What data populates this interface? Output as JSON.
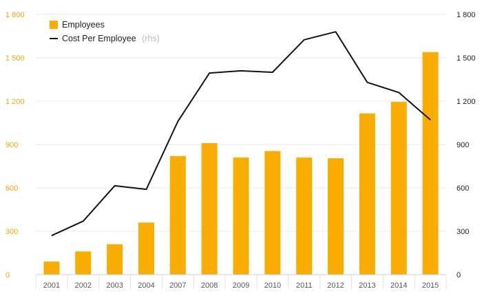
{
  "chart_data": {
    "type": "bar",
    "categories": [
      "2001",
      "2002",
      "2003",
      "2004",
      "2007",
      "2008",
      "2009",
      "2010",
      "2011",
      "2012",
      "2013",
      "2014",
      "2015"
    ],
    "series": [
      {
        "name": "Employees",
        "type": "bar",
        "axis": "left",
        "color": "#f8ad00",
        "values": [
          90,
          160,
          210,
          360,
          820,
          910,
          810,
          855,
          810,
          805,
          1115,
          1195,
          1540
        ]
      },
      {
        "name": "Cost Per Employee",
        "name_suffix": "(rhs)",
        "type": "line",
        "axis": "right",
        "color": "#111111",
        "values": [
          270,
          370,
          615,
          590,
          1060,
          1395,
          1410,
          1400,
          1625,
          1680,
          1330,
          1260,
          1070
        ]
      }
    ],
    "y_left": {
      "ylim": [
        0,
        1800
      ],
      "ticks": [
        0,
        300,
        600,
        900,
        1200,
        1500,
        1800
      ],
      "tick_labels": [
        "0",
        "300",
        "600",
        "900",
        "1 200",
        "1 500",
        "1 800"
      ],
      "color": "#f3a800"
    },
    "y_right": {
      "ylim": [
        0,
        1800
      ],
      "ticks": [
        0,
        300,
        600,
        900,
        1200,
        1500,
        1800
      ],
      "tick_labels": [
        "0",
        "300",
        "600",
        "900",
        "1 200",
        "1 500",
        "1 800"
      ],
      "color": "#222222"
    },
    "grid": true,
    "legend_position": "top-left"
  }
}
